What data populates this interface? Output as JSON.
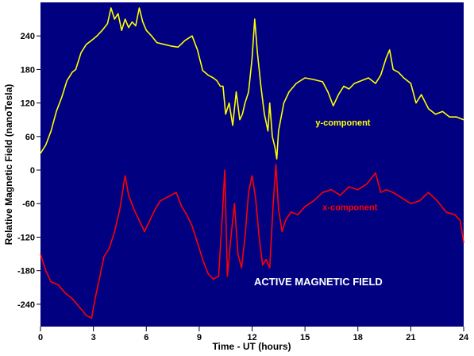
{
  "colors": {
    "plot_background": "#000080",
    "y_component": "#ffff00",
    "x_component": "#ff0000",
    "annotation": "#ffffff",
    "tick": "#000000"
  },
  "chart_data": {
    "type": "line",
    "xlabel": "Time - UT (hours)",
    "ylabel": "Relative Magnetic Field (nanoTesla)",
    "xlim": [
      0,
      24
    ],
    "ylim": [
      -280,
      300
    ],
    "x_ticks": [
      0,
      3,
      6,
      9,
      12,
      15,
      18,
      21,
      24
    ],
    "y_ticks": [
      -240,
      -180,
      -120,
      -60,
      0,
      60,
      120,
      180,
      240
    ],
    "grid": false,
    "annotation": "ACTIVE MAGNETIC FIELD",
    "series": [
      {
        "name": "y-component",
        "color": "#ffff00",
        "label_at": [
          15.6,
          80
        ],
        "x": [
          0,
          0.3,
          0.6,
          0.9,
          1.2,
          1.5,
          1.8,
          2.0,
          2.3,
          2.6,
          2.9,
          3.2,
          3.5,
          3.8,
          4.0,
          4.2,
          4.4,
          4.6,
          4.8,
          5.0,
          5.2,
          5.4,
          5.6,
          5.8,
          6.0,
          6.3,
          6.6,
          7.0,
          7.4,
          7.8,
          8.2,
          8.6,
          8.9,
          9.2,
          9.5,
          9.8,
          10.0,
          10.2,
          10.35,
          10.5,
          10.7,
          10.9,
          11.1,
          11.3,
          11.45,
          11.6,
          11.8,
          12.0,
          12.15,
          12.3,
          12.5,
          12.7,
          12.9,
          13.0,
          13.15,
          13.3,
          13.4,
          13.5,
          13.8,
          14.1,
          14.5,
          15.0,
          15.5,
          16.0,
          16.3,
          16.6,
          16.9,
          17.2,
          17.5,
          17.8,
          18.2,
          18.6,
          19.0,
          19.3,
          19.6,
          19.8,
          20.0,
          20.3,
          20.6,
          21.0,
          21.3,
          21.6,
          22.0,
          22.4,
          22.8,
          23.2,
          23.6,
          24.0
        ],
        "y": [
          30,
          45,
          70,
          105,
          130,
          160,
          175,
          180,
          210,
          225,
          232,
          240,
          250,
          262,
          290,
          270,
          280,
          250,
          270,
          255,
          265,
          258,
          290,
          265,
          250,
          240,
          228,
          225,
          222,
          220,
          232,
          240,
          215,
          178,
          170,
          165,
          160,
          150,
          150,
          100,
          120,
          80,
          140,
          90,
          100,
          120,
          140,
          200,
          270,
          210,
          150,
          100,
          70,
          120,
          60,
          40,
          20,
          70,
          120,
          140,
          155,
          165,
          162,
          158,
          140,
          115,
          135,
          150,
          145,
          155,
          160,
          165,
          155,
          170,
          200,
          215,
          180,
          175,
          165,
          155,
          120,
          135,
          110,
          100,
          105,
          95,
          95,
          90
        ]
      },
      {
        "name": "x-component",
        "color": "#ff0000",
        "label_at": [
          16.0,
          -72
        ],
        "x": [
          0,
          0.3,
          0.6,
          1.0,
          1.4,
          1.8,
          2.2,
          2.6,
          2.9,
          3.1,
          3.3,
          3.6,
          3.9,
          4.2,
          4.5,
          4.8,
          5.0,
          5.3,
          5.6,
          5.9,
          6.2,
          6.5,
          6.8,
          7.1,
          7.4,
          7.7,
          8.0,
          8.3,
          8.6,
          8.9,
          9.2,
          9.5,
          9.8,
          10.1,
          10.3,
          10.45,
          10.6,
          10.8,
          11.0,
          11.2,
          11.4,
          11.6,
          11.8,
          12.0,
          12.2,
          12.4,
          12.6,
          12.8,
          13.0,
          13.2,
          13.35,
          13.5,
          13.7,
          13.9,
          14.2,
          14.6,
          15.0,
          15.5,
          16.0,
          16.5,
          17.0,
          17.5,
          18.0,
          18.5,
          19.0,
          19.3,
          19.6,
          20.0,
          20.5,
          21.0,
          21.5,
          22.0,
          22.5,
          23.0,
          23.5,
          23.8,
          24.0
        ],
        "y": [
          -150,
          -180,
          -200,
          -205,
          -220,
          -230,
          -245,
          -260,
          -265,
          -230,
          -200,
          -155,
          -140,
          -110,
          -70,
          -10,
          -45,
          -70,
          -90,
          -110,
          -90,
          -70,
          -55,
          -50,
          -45,
          -40,
          -65,
          -80,
          -100,
          -130,
          -160,
          -185,
          -195,
          -190,
          -90,
          0,
          -190,
          -120,
          -60,
          -150,
          -175,
          -120,
          -40,
          -10,
          -50,
          -120,
          -170,
          -160,
          -175,
          -60,
          10,
          -70,
          -110,
          -90,
          -75,
          -80,
          -65,
          -55,
          -40,
          -35,
          -45,
          -30,
          -35,
          -25,
          -5,
          -40,
          -35,
          -40,
          -50,
          -60,
          -55,
          -40,
          -55,
          -75,
          -80,
          -90,
          -130
        ]
      }
    ]
  }
}
